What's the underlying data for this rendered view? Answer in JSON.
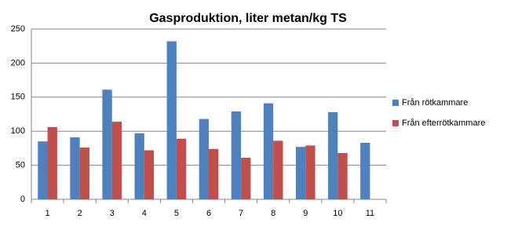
{
  "chart_data": {
    "type": "bar",
    "title": "Gasproduktion, liter metan/kg TS",
    "categories": [
      "1",
      "2",
      "3",
      "4",
      "5",
      "6",
      "7",
      "8",
      "9",
      "10",
      "11"
    ],
    "series": [
      {
        "name": "Från rötkammare",
        "color": "#4f81bd",
        "values": [
          85,
          91,
          161,
          97,
          232,
          118,
          129,
          141,
          77,
          128,
          83
        ]
      },
      {
        "name": "Från efterrötkammare",
        "color": "#c0504d",
        "values": [
          106,
          76,
          114,
          72,
          89,
          74,
          61,
          86,
          79,
          68,
          null
        ]
      }
    ],
    "ylim": [
      0,
      250
    ],
    "yticks": [
      0,
      50,
      100,
      150,
      200,
      250
    ],
    "grid": true,
    "legend": "right"
  }
}
